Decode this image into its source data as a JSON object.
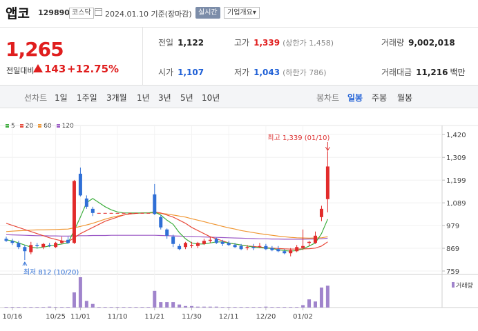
{
  "header": {
    "name": "앱코",
    "code": "129890",
    "market": "코스닥",
    "date": "2024.01.10",
    "basis": "기준(장마감)",
    "realtime": "실시간",
    "company_info": "기업개요",
    "company_info_chevron": "▾"
  },
  "quote": {
    "price": "1,265",
    "change_label": "전일대비",
    "change_amount": "143",
    "change_pct": "+12.75%",
    "prev_label": "전일",
    "prev": "1,122",
    "high_label": "고가",
    "high": "1,339",
    "upper_limit": "(상한가 1,458)",
    "volume_label": "거래량",
    "volume": "9,002,018",
    "open_label": "시가",
    "open": "1,107",
    "low_label": "저가",
    "low": "1,043",
    "lower_limit": "(하한가 786)",
    "amount_label": "거래대금",
    "amount": "11,216",
    "amount_unit": "백만"
  },
  "tabs": {
    "line_head": "선차트",
    "line_items": [
      "1일",
      "1주일",
      "3개월",
      "1년",
      "3년",
      "5년",
      "10년"
    ],
    "candle_head": "봉차트",
    "candle_items": [
      "일봉",
      "주봉",
      "월봉"
    ],
    "candle_selected": 0
  },
  "chart_data": {
    "type": "candlestick",
    "legend": [
      {
        "name": "5",
        "color": "#3dae3d"
      },
      {
        "name": "20",
        "color": "#e84b3c"
      },
      {
        "name": "60",
        "color": "#f09530"
      },
      {
        "name": "120",
        "color": "#9b59c6"
      }
    ],
    "colors": {
      "up": "#e22b2b",
      "down": "#2f6fd6",
      "volume": "#a084cc"
    },
    "y_ticks": [
      759,
      869,
      979,
      1089,
      1199,
      1309,
      1420
    ],
    "y_tick_labels": [
      "759",
      "869",
      "979",
      "1,089",
      "1,199",
      "1,309",
      "1,420"
    ],
    "ylim": [
      759,
      1420
    ],
    "x_labels": [
      {
        "i": 1,
        "label": "10/16"
      },
      {
        "i": 8,
        "label": "10/25"
      },
      {
        "i": 12,
        "label": "11/01"
      },
      {
        "i": 18,
        "label": "11/10"
      },
      {
        "i": 24,
        "label": "11/21"
      },
      {
        "i": 30,
        "label": "11/30"
      },
      {
        "i": 36,
        "label": "12/11"
      },
      {
        "i": 42,
        "label": "12/20"
      },
      {
        "i": 48,
        "label": "01/02"
      }
    ],
    "volume_label": "거래량",
    "high_annotation": {
      "text": "최고 1,339 (01/10)",
      "i": 52,
      "value": 1339
    },
    "low_annotation": {
      "text": "최저 812 (10/20)",
      "i": 3,
      "value": 812
    },
    "candles": [
      {
        "i": 0,
        "o": 915,
        "h": 925,
        "l": 900,
        "c": 905
      },
      {
        "i": 1,
        "o": 905,
        "h": 915,
        "l": 885,
        "c": 895
      },
      {
        "i": 2,
        "o": 895,
        "h": 905,
        "l": 865,
        "c": 875
      },
      {
        "i": 3,
        "o": 875,
        "h": 885,
        "l": 812,
        "c": 855
      },
      {
        "i": 4,
        "o": 850,
        "h": 900,
        "l": 840,
        "c": 885
      },
      {
        "i": 5,
        "o": 885,
        "h": 895,
        "l": 870,
        "c": 880
      },
      {
        "i": 6,
        "o": 875,
        "h": 895,
        "l": 865,
        "c": 890
      },
      {
        "i": 7,
        "o": 885,
        "h": 895,
        "l": 875,
        "c": 880
      },
      {
        "i": 8,
        "o": 875,
        "h": 900,
        "l": 870,
        "c": 895
      },
      {
        "i": 9,
        "o": 895,
        "h": 925,
        "l": 890,
        "c": 905
      },
      {
        "i": 10,
        "o": 910,
        "h": 925,
        "l": 890,
        "c": 895
      },
      {
        "i": 11,
        "o": 895,
        "h": 1200,
        "l": 890,
        "c": 1195
      },
      {
        "i": 12,
        "o": 1230,
        "h": 1260,
        "l": 1120,
        "c": 1125
      },
      {
        "i": 13,
        "o": 1110,
        "h": 1125,
        "l": 1060,
        "c": 1070
      },
      {
        "i": 14,
        "o": 1060,
        "h": 1070,
        "l": 1025,
        "c": 1040
      },
      {
        "i": 15,
        "o": 1040,
        "h": 1040,
        "l": 1038,
        "c": 1040
      },
      {
        "i": 16,
        "o": 1040,
        "h": 1040,
        "l": 1038,
        "c": 1040
      },
      {
        "i": 17,
        "o": 1040,
        "h": 1040,
        "l": 1038,
        "c": 1040
      },
      {
        "i": 18,
        "o": 1040,
        "h": 1040,
        "l": 1038,
        "c": 1040
      },
      {
        "i": 19,
        "o": 1040,
        "h": 1040,
        "l": 1038,
        "c": 1040
      },
      {
        "i": 20,
        "o": 1040,
        "h": 1040,
        "l": 1038,
        "c": 1040
      },
      {
        "i": 21,
        "o": 1040,
        "h": 1040,
        "l": 1038,
        "c": 1040
      },
      {
        "i": 22,
        "o": 1040,
        "h": 1040,
        "l": 1038,
        "c": 1040
      },
      {
        "i": 23,
        "o": 1040,
        "h": 1040,
        "l": 1038,
        "c": 1040
      },
      {
        "i": 24,
        "o": 1130,
        "h": 1180,
        "l": 1030,
        "c": 1035
      },
      {
        "i": 25,
        "o": 1020,
        "h": 1030,
        "l": 960,
        "c": 970
      },
      {
        "i": 26,
        "o": 960,
        "h": 965,
        "l": 915,
        "c": 930
      },
      {
        "i": 27,
        "o": 925,
        "h": 935,
        "l": 875,
        "c": 890
      },
      {
        "i": 28,
        "o": 880,
        "h": 890,
        "l": 860,
        "c": 865
      },
      {
        "i": 29,
        "o": 875,
        "h": 900,
        "l": 865,
        "c": 895
      },
      {
        "i": 30,
        "o": 880,
        "h": 900,
        "l": 870,
        "c": 885
      },
      {
        "i": 31,
        "o": 880,
        "h": 900,
        "l": 870,
        "c": 895
      },
      {
        "i": 32,
        "o": 890,
        "h": 915,
        "l": 885,
        "c": 905
      },
      {
        "i": 33,
        "o": 905,
        "h": 925,
        "l": 895,
        "c": 910
      },
      {
        "i": 34,
        "o": 915,
        "h": 920,
        "l": 890,
        "c": 895
      },
      {
        "i": 35,
        "o": 900,
        "h": 910,
        "l": 880,
        "c": 890
      },
      {
        "i": 36,
        "o": 895,
        "h": 905,
        "l": 880,
        "c": 885
      },
      {
        "i": 37,
        "o": 885,
        "h": 895,
        "l": 870,
        "c": 875
      },
      {
        "i": 38,
        "o": 880,
        "h": 890,
        "l": 860,
        "c": 865
      },
      {
        "i": 39,
        "o": 870,
        "h": 885,
        "l": 860,
        "c": 875
      },
      {
        "i": 40,
        "o": 875,
        "h": 890,
        "l": 860,
        "c": 870
      },
      {
        "i": 41,
        "o": 880,
        "h": 895,
        "l": 870,
        "c": 880
      },
      {
        "i": 42,
        "o": 880,
        "h": 890,
        "l": 860,
        "c": 865
      },
      {
        "i": 43,
        "o": 870,
        "h": 880,
        "l": 855,
        "c": 860
      },
      {
        "i": 44,
        "o": 865,
        "h": 880,
        "l": 850,
        "c": 855
      },
      {
        "i": 45,
        "o": 855,
        "h": 865,
        "l": 840,
        "c": 845
      },
      {
        "i": 46,
        "o": 845,
        "h": 870,
        "l": 830,
        "c": 860
      },
      {
        "i": 47,
        "o": 855,
        "h": 885,
        "l": 850,
        "c": 875
      },
      {
        "i": 48,
        "o": 870,
        "h": 960,
        "l": 860,
        "c": 880
      },
      {
        "i": 49,
        "o": 895,
        "h": 905,
        "l": 880,
        "c": 900
      },
      {
        "i": 50,
        "o": 895,
        "h": 950,
        "l": 890,
        "c": 930
      },
      {
        "i": 51,
        "o": 1020,
        "h": 1075,
        "l": 1000,
        "c": 1060
      },
      {
        "i": 52,
        "o": 1107,
        "h": 1339,
        "l": 1043,
        "c": 1265
      }
    ],
    "ma5": [
      910,
      905,
      895,
      885,
      875,
      870,
      875,
      880,
      885,
      890,
      895,
      955,
      1020,
      1090,
      1110,
      1090,
      1070,
      1055,
      1045,
      1040,
      1040,
      1040,
      1040,
      1040,
      1045,
      1030,
      1005,
      985,
      945,
      915,
      895,
      890,
      890,
      895,
      900,
      900,
      895,
      890,
      885,
      880,
      875,
      872,
      870,
      868,
      862,
      858,
      855,
      858,
      866,
      880,
      895,
      940,
      1010
    ],
    "ma20": [
      990,
      980,
      970,
      960,
      950,
      940,
      930,
      920,
      912,
      905,
      900,
      920,
      940,
      955,
      970,
      985,
      1000,
      1010,
      1020,
      1030,
      1035,
      1038,
      1040,
      1040,
      1045,
      1040,
      1030,
      1020,
      1005,
      990,
      970,
      955,
      940,
      925,
      915,
      905,
      895,
      890,
      885,
      880,
      878,
      875,
      872,
      870,
      868,
      866,
      865,
      865,
      866,
      867,
      870,
      880,
      900
    ],
    "ma60": [
      950,
      952,
      954,
      955,
      957,
      958,
      958,
      959,
      960,
      961,
      962,
      968,
      975,
      982,
      990,
      1000,
      1010,
      1018,
      1025,
      1030,
      1035,
      1038,
      1040,
      1040,
      1040,
      1038,
      1035,
      1030,
      1025,
      1020,
      1012,
      1005,
      998,
      990,
      983,
      975,
      968,
      962,
      955,
      950,
      945,
      940,
      936,
      932,
      928,
      925,
      922,
      920,
      919,
      918,
      919,
      920,
      925
    ],
    "ma120": [
      935,
      934,
      933,
      932,
      931,
      930,
      930,
      929,
      929,
      928,
      928,
      929,
      930,
      930,
      931,
      931,
      931,
      932,
      932,
      932,
      932,
      932,
      932,
      932,
      932,
      931,
      930,
      929,
      928,
      927,
      926,
      925,
      924,
      923,
      922,
      921,
      920,
      919,
      918,
      917,
      916,
      915,
      915,
      914,
      914,
      913,
      913,
      913,
      913,
      914,
      914,
      915,
      918
    ],
    "volume": [
      0.02,
      0.02,
      0.02,
      0.02,
      0.02,
      0.02,
      0.02,
      0.03,
      0.02,
      0.02,
      0.02,
      0.5,
      1.0,
      0.22,
      0.12,
      0.02,
      0.02,
      0.02,
      0.02,
      0.02,
      0.02,
      0.02,
      0.02,
      0.02,
      0.55,
      0.18,
      0.18,
      0.18,
      0.1,
      0.05,
      0.05,
      0.03,
      0.03,
      0.03,
      0.03,
      0.02,
      0.02,
      0.02,
      0.02,
      0.02,
      0.02,
      0.02,
      0.03,
      0.02,
      0.02,
      0.02,
      0.02,
      0.02,
      0.08,
      0.27,
      0.2,
      0.66,
      0.72
    ]
  }
}
